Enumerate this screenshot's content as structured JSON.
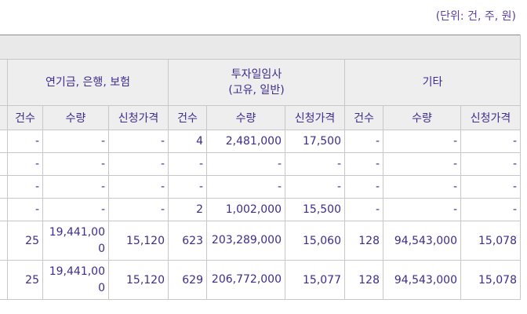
{
  "unit_note": "(단위: 건, 주, 원)",
  "groups": [
    {
      "label": "연기금, 은행, 보험"
    },
    {
      "label": "투자일임사",
      "sublabel": "(고유, 일반)"
    },
    {
      "label": "기타"
    }
  ],
  "subheaders": [
    "건수",
    "수량",
    "신청가격",
    "건수",
    "수량",
    "신청가격",
    "건수",
    "수량",
    "신청가격"
  ],
  "rows": [
    {
      "cells": [
        "-",
        "-",
        "-",
        "4",
        "2,481,000",
        "17,500",
        "-",
        "-",
        "-"
      ]
    },
    {
      "cells": [
        "-",
        "-",
        "-",
        "-",
        "-",
        "-",
        "-",
        "-",
        "-"
      ]
    },
    {
      "cells": [
        "-",
        "-",
        "-",
        "-",
        "-",
        "-",
        "-",
        "-",
        "-"
      ]
    },
    {
      "cells": [
        "-",
        "-",
        "-",
        "2",
        "1,002,000",
        "15,500",
        "-",
        "-",
        "-"
      ]
    },
    {
      "cells": [
        "25",
        "19,441,000",
        "15,120",
        "623",
        "203,289,000",
        "15,060",
        "128",
        "94,543,000",
        "15,078"
      ]
    },
    {
      "cells": [
        "25",
        "19,441,000",
        "15,120",
        "629",
        "206,772,000",
        "15,077",
        "128",
        "94,543,000",
        "15,078"
      ]
    }
  ]
}
